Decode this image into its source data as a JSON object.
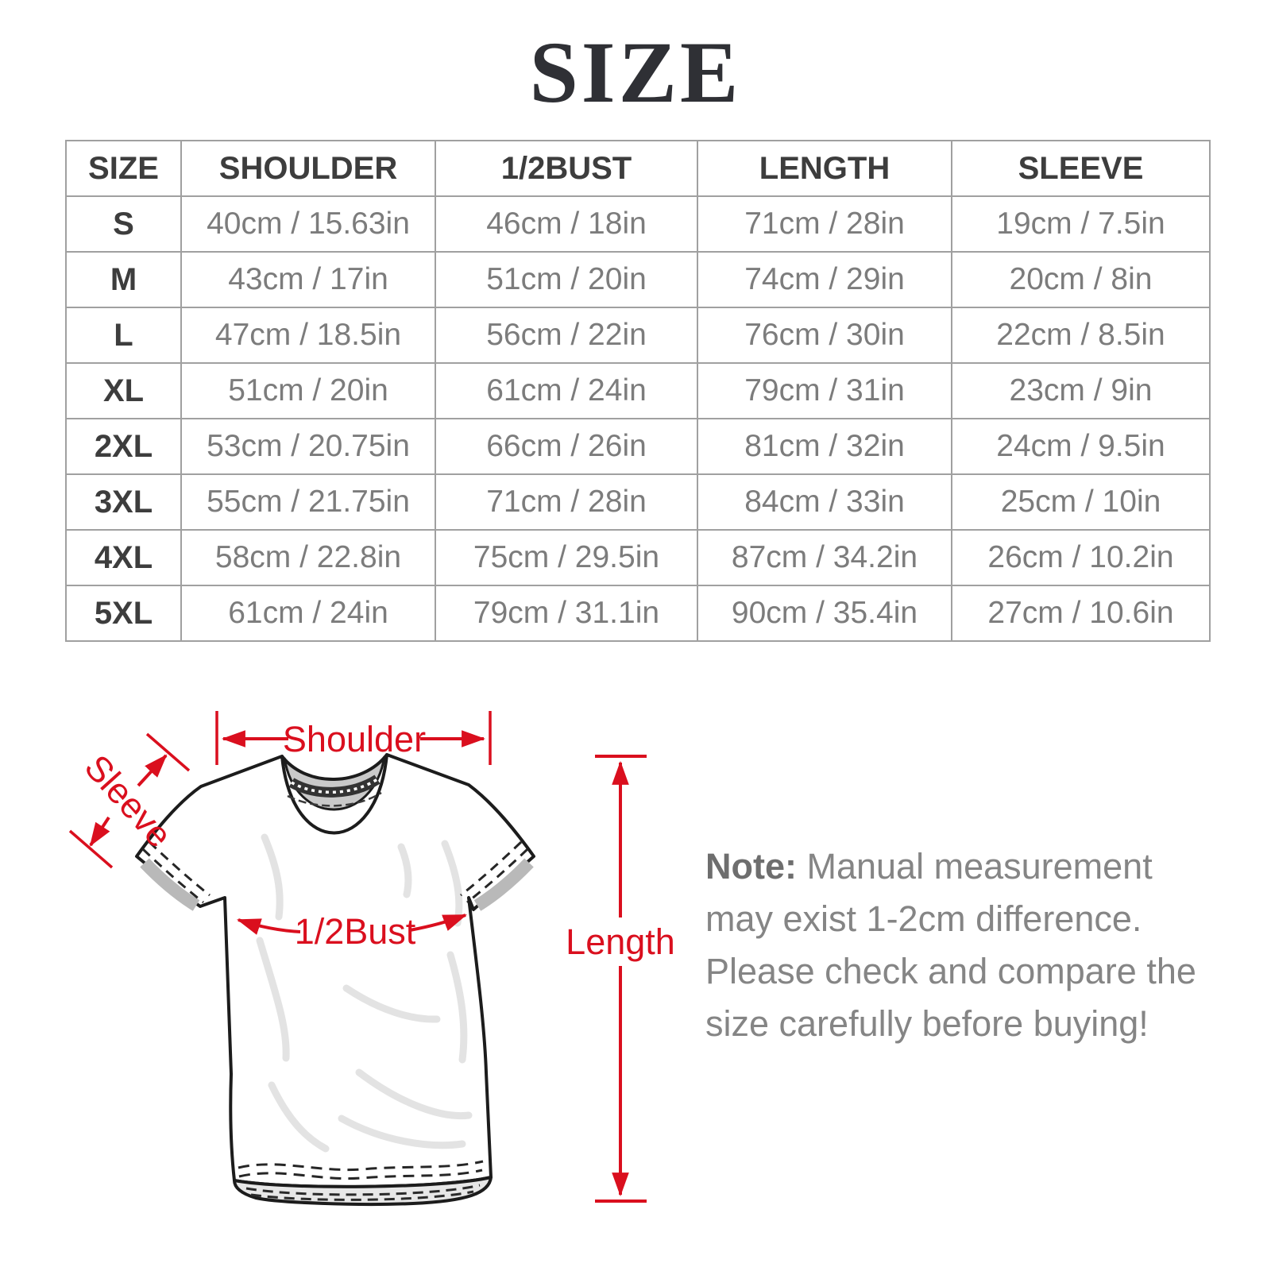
{
  "title": "SIZE",
  "table": {
    "headers": [
      "SIZE",
      "SHOULDER",
      "1/2BUST",
      "LENGTH",
      "SLEEVE"
    ],
    "rows": [
      [
        "S",
        "40cm / 15.63in",
        "46cm / 18in",
        "71cm / 28in",
        "19cm / 7.5in"
      ],
      [
        "M",
        "43cm / 17in",
        "51cm / 20in",
        "74cm / 29in",
        "20cm / 8in"
      ],
      [
        "L",
        "47cm / 18.5in",
        "56cm / 22in",
        "76cm / 30in",
        "22cm / 8.5in"
      ],
      [
        "XL",
        "51cm / 20in",
        "61cm / 24in",
        "79cm / 31in",
        "23cm / 9in"
      ],
      [
        "2XL",
        "53cm / 20.75in",
        "66cm / 26in",
        "81cm / 32in",
        "24cm / 9.5in"
      ],
      [
        "3XL",
        "55cm / 21.75in",
        "71cm / 28in",
        "84cm / 33in",
        "25cm / 10in"
      ],
      [
        "4XL",
        "58cm / 22.8in",
        "75cm / 29.5in",
        "87cm / 34.2in",
        "26cm / 10.2in"
      ],
      [
        "5XL",
        "61cm / 24in",
        "79cm / 31.1in",
        "90cm / 35.4in",
        "27cm / 10.6in"
      ]
    ]
  },
  "diagram": {
    "shoulder_label": "Shoulder",
    "sleeve_label": "Sleeve",
    "bust_label": "1/2Bust",
    "length_label": "Length",
    "annotation_color": "#da0f1e",
    "outline_color": "#1c1c1c"
  },
  "note": {
    "label": "Note:",
    "text": " Manual measurement may exist 1-2cm difference. Please check and compare the size carefully before buying!"
  }
}
